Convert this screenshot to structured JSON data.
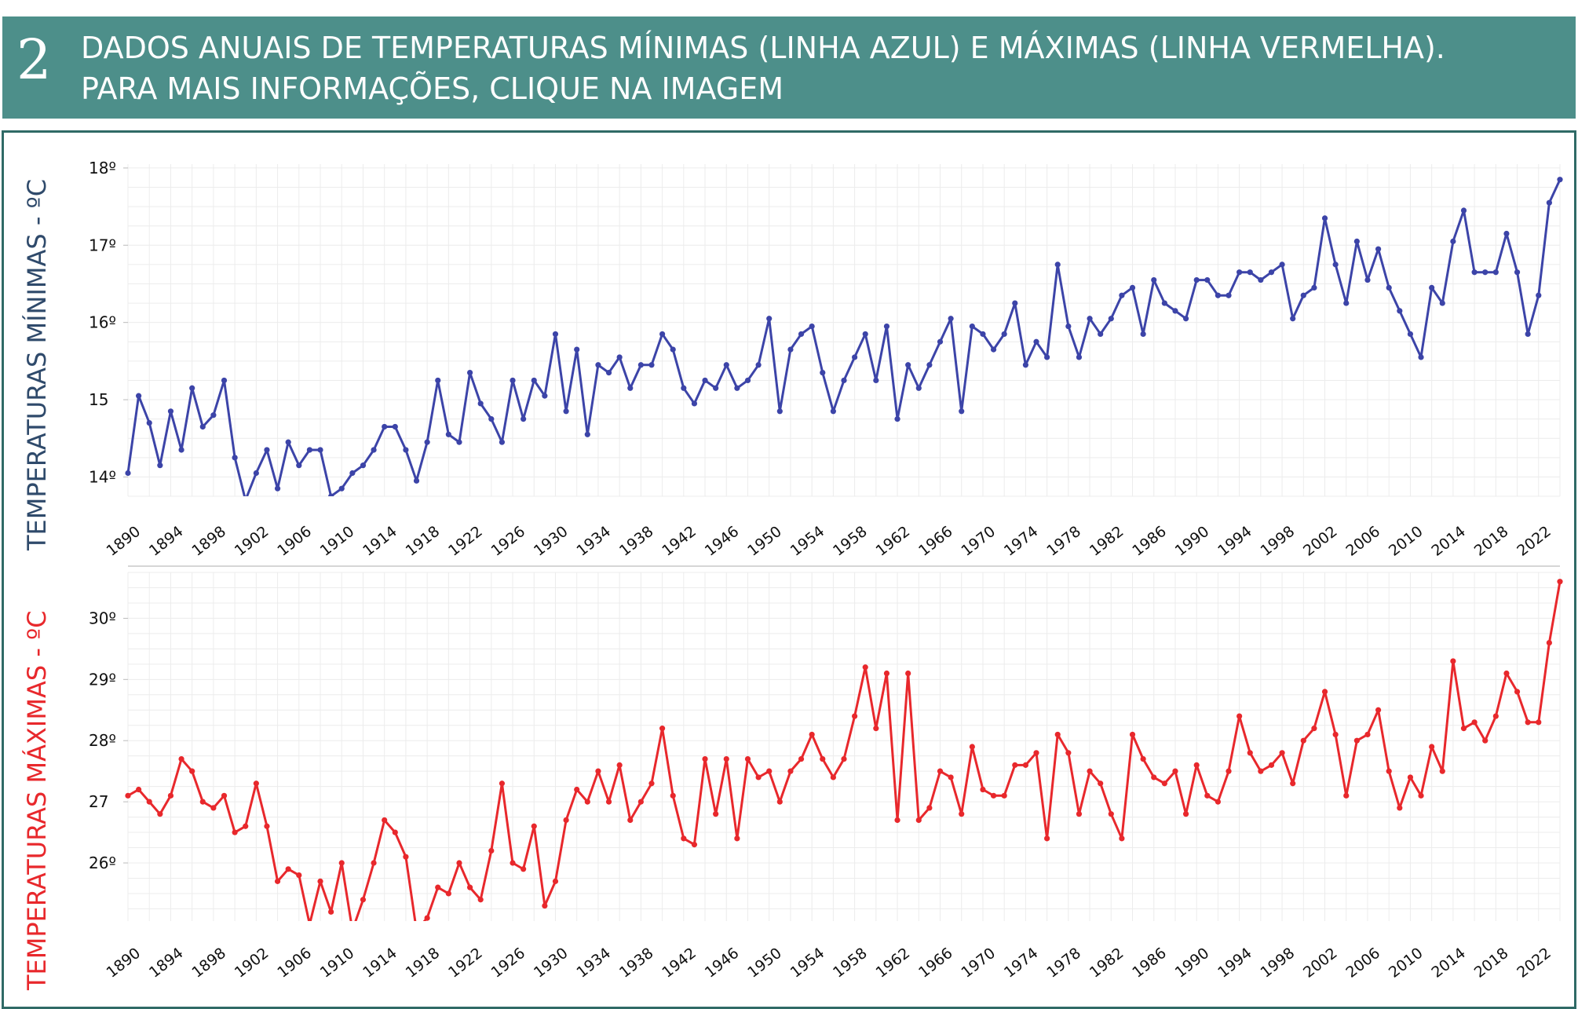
{
  "header": {
    "number": "2",
    "line1": "DADOS ANUAIS DE TEMPERATURAS MÍNIMAS (LINHA AZUL) E MÁXIMAS (LINHA VERMELHA).",
    "line2": "PARA MAIS INFORMAÇÕES, CLIQUE NA IMAGEM",
    "background": "#4d8f8a"
  },
  "chart_data": [
    {
      "type": "line",
      "ylabel": "TEMPERATURAS MÍNIMAS - ºC",
      "color": "#3c44a8",
      "ylim": [
        13.75,
        18.05
      ],
      "yticks": [
        14,
        15,
        16,
        17,
        18
      ],
      "ytick_labels": [
        "14º",
        "15",
        "16º",
        "17º",
        "18º"
      ],
      "xlim": [
        1890,
        2024
      ],
      "xticks": [
        1890,
        1894,
        1898,
        1902,
        1906,
        1910,
        1914,
        1918,
        1922,
        1926,
        1930,
        1934,
        1938,
        1942,
        1946,
        1950,
        1954,
        1958,
        1962,
        1966,
        1970,
        1974,
        1978,
        1982,
        1986,
        1990,
        1994,
        1998,
        2002,
        2006,
        2010,
        2014,
        2018,
        2022
      ],
      "grid": true,
      "x": [
        1890,
        1891,
        1892,
        1893,
        1894,
        1895,
        1896,
        1897,
        1898,
        1899,
        1900,
        1901,
        1902,
        1903,
        1904,
        1905,
        1906,
        1907,
        1908,
        1909,
        1910,
        1911,
        1912,
        1913,
        1914,
        1915,
        1916,
        1917,
        1918,
        1919,
        1920,
        1921,
        1922,
        1923,
        1924,
        1925,
        1926,
        1927,
        1928,
        1929,
        1930,
        1931,
        1932,
        1933,
        1934,
        1935,
        1936,
        1937,
        1938,
        1939,
        1940,
        1941,
        1942,
        1943,
        1944,
        1945,
        1946,
        1947,
        1948,
        1949,
        1950,
        1951,
        1952,
        1953,
        1954,
        1955,
        1956,
        1957,
        1958,
        1959,
        1960,
        1961,
        1962,
        1963,
        1964,
        1965,
        1966,
        1967,
        1968,
        1969,
        1970,
        1971,
        1972,
        1973,
        1974,
        1975,
        1976,
        1977,
        1978,
        1979,
        1980,
        1981,
        1982,
        1983,
        1984,
        1985,
        1986,
        1987,
        1988,
        1989,
        1990,
        1991,
        1992,
        1993,
        1994,
        1995,
        1996,
        1997,
        1998,
        1999,
        2000,
        2001,
        2002,
        2003,
        2004,
        2005,
        2006,
        2007,
        2008,
        2009,
        2010,
        2011,
        2012,
        2013,
        2014,
        2015,
        2016,
        2017,
        2018,
        2019,
        2020,
        2021,
        2022,
        2023,
        2024
      ],
      "values": [
        14.05,
        15.05,
        14.7,
        14.15,
        14.85,
        14.35,
        15.15,
        14.65,
        14.8,
        15.25,
        14.25,
        13.7,
        14.05,
        14.35,
        13.85,
        14.45,
        14.15,
        14.35,
        14.35,
        13.75,
        13.85,
        14.05,
        14.15,
        14.35,
        14.65,
        14.65,
        14.35,
        13.95,
        14.45,
        15.25,
        14.55,
        14.45,
        15.35,
        14.95,
        14.75,
        14.45,
        15.25,
        14.75,
        15.25,
        15.05,
        15.85,
        14.85,
        15.65,
        14.55,
        15.45,
        15.35,
        15.55,
        15.15,
        15.45,
        15.45,
        15.85,
        15.65,
        15.15,
        14.95,
        15.25,
        15.15,
        15.45,
        15.15,
        15.25,
        15.45,
        16.05,
        14.85,
        15.65,
        15.85,
        15.95,
        15.35,
        14.85,
        15.25,
        15.55,
        15.85,
        15.25,
        15.95,
        14.75,
        15.45,
        15.15,
        15.45,
        15.75,
        16.05,
        14.85,
        15.95,
        15.85,
        15.65,
        15.85,
        16.25,
        15.45,
        15.75,
        15.55,
        16.75,
        15.95,
        15.55,
        16.05,
        15.85,
        16.05,
        16.35,
        16.45,
        15.85,
        16.55,
        16.25,
        16.15,
        16.05,
        16.55,
        16.55,
        16.35,
        16.35,
        16.65,
        16.65,
        16.55,
        16.65,
        16.75,
        16.05,
        16.35,
        16.45,
        17.35,
        16.75,
        16.25,
        17.05,
        16.55,
        16.95,
        16.45,
        16.15,
        15.85,
        15.55,
        16.45,
        16.25,
        17.05,
        17.45,
        16.65,
        16.65,
        16.65,
        17.15,
        16.65,
        15.85,
        16.35,
        17.55,
        17.85
      ]
    },
    {
      "type": "line",
      "ylabel": "TEMPERATURAS MÁXIMAS - ºC",
      "color": "#e8282c",
      "ylim": [
        25.05,
        30.75
      ],
      "yticks": [
        26,
        27,
        28,
        29,
        30
      ],
      "ytick_labels": [
        "26º",
        "27",
        "28º",
        "29º",
        "30º"
      ],
      "xlim": [
        1890,
        2024
      ],
      "xticks": [
        1890,
        1894,
        1898,
        1902,
        1906,
        1910,
        1914,
        1918,
        1922,
        1926,
        1930,
        1934,
        1938,
        1942,
        1946,
        1950,
        1954,
        1958,
        1962,
        1966,
        1970,
        1974,
        1978,
        1982,
        1986,
        1990,
        1994,
        1998,
        2002,
        2006,
        2010,
        2014,
        2018,
        2022
      ],
      "grid": true,
      "x": [
        1890,
        1891,
        1892,
        1893,
        1894,
        1895,
        1896,
        1897,
        1898,
        1899,
        1900,
        1901,
        1902,
        1903,
        1904,
        1905,
        1906,
        1907,
        1908,
        1909,
        1910,
        1911,
        1912,
        1913,
        1914,
        1915,
        1916,
        1917,
        1918,
        1919,
        1920,
        1921,
        1922,
        1923,
        1924,
        1925,
        1926,
        1927,
        1928,
        1929,
        1930,
        1931,
        1932,
        1933,
        1934,
        1935,
        1936,
        1937,
        1938,
        1939,
        1940,
        1941,
        1942,
        1943,
        1944,
        1945,
        1946,
        1947,
        1948,
        1949,
        1950,
        1951,
        1952,
        1953,
        1954,
        1955,
        1956,
        1957,
        1958,
        1959,
        1960,
        1961,
        1962,
        1963,
        1964,
        1965,
        1966,
        1967,
        1968,
        1969,
        1970,
        1971,
        1972,
        1973,
        1974,
        1975,
        1976,
        1977,
        1978,
        1979,
        1980,
        1981,
        1982,
        1983,
        1984,
        1985,
        1986,
        1987,
        1988,
        1989,
        1990,
        1991,
        1992,
        1993,
        1994,
        1995,
        1996,
        1997,
        1998,
        1999,
        2000,
        2001,
        2002,
        2003,
        2004,
        2005,
        2006,
        2007,
        2008,
        2009,
        2010,
        2011,
        2012,
        2013,
        2014,
        2015,
        2016,
        2017,
        2018,
        2019,
        2020,
        2021,
        2022,
        2023,
        2024
      ],
      "values": [
        27.1,
        27.2,
        27.0,
        26.8,
        27.1,
        27.7,
        27.5,
        27.0,
        26.9,
        27.1,
        26.5,
        26.6,
        27.3,
        26.6,
        25.7,
        25.9,
        25.8,
        25.0,
        25.7,
        25.2,
        26.0,
        24.9,
        25.4,
        26.0,
        26.7,
        26.5,
        26.1,
        24.9,
        25.1,
        25.6,
        25.5,
        26.0,
        25.6,
        25.4,
        26.2,
        27.3,
        26.0,
        25.9,
        26.6,
        25.3,
        25.7,
        26.7,
        27.2,
        27.0,
        27.5,
        27.0,
        27.6,
        26.7,
        27.0,
        27.3,
        28.2,
        27.1,
        26.4,
        26.3,
        27.7,
        26.8,
        27.7,
        26.4,
        27.7,
        27.4,
        27.5,
        27.0,
        27.5,
        27.7,
        28.1,
        27.7,
        27.4,
        27.7,
        28.4,
        29.2,
        28.2,
        29.1,
        26.7,
        29.1,
        26.7,
        26.9,
        27.5,
        27.4,
        26.8,
        27.9,
        27.2,
        27.1,
        27.1,
        27.6,
        27.6,
        27.8,
        26.4,
        28.1,
        27.8,
        26.8,
        27.5,
        27.3,
        26.8,
        26.4,
        28.1,
        27.7,
        27.4,
        27.3,
        27.5,
        26.8,
        27.6,
        27.1,
        27.0,
        27.5,
        28.4,
        27.8,
        27.5,
        27.6,
        27.8,
        27.3,
        28.0,
        28.2,
        28.8,
        28.1,
        27.1,
        28.0,
        28.1,
        28.5,
        27.5,
        26.9,
        27.4,
        27.1,
        27.9,
        27.5,
        29.3,
        28.2,
        28.3,
        28.0,
        28.4,
        29.1,
        28.8,
        28.3,
        28.3,
        29.6,
        30.6
      ]
    }
  ]
}
